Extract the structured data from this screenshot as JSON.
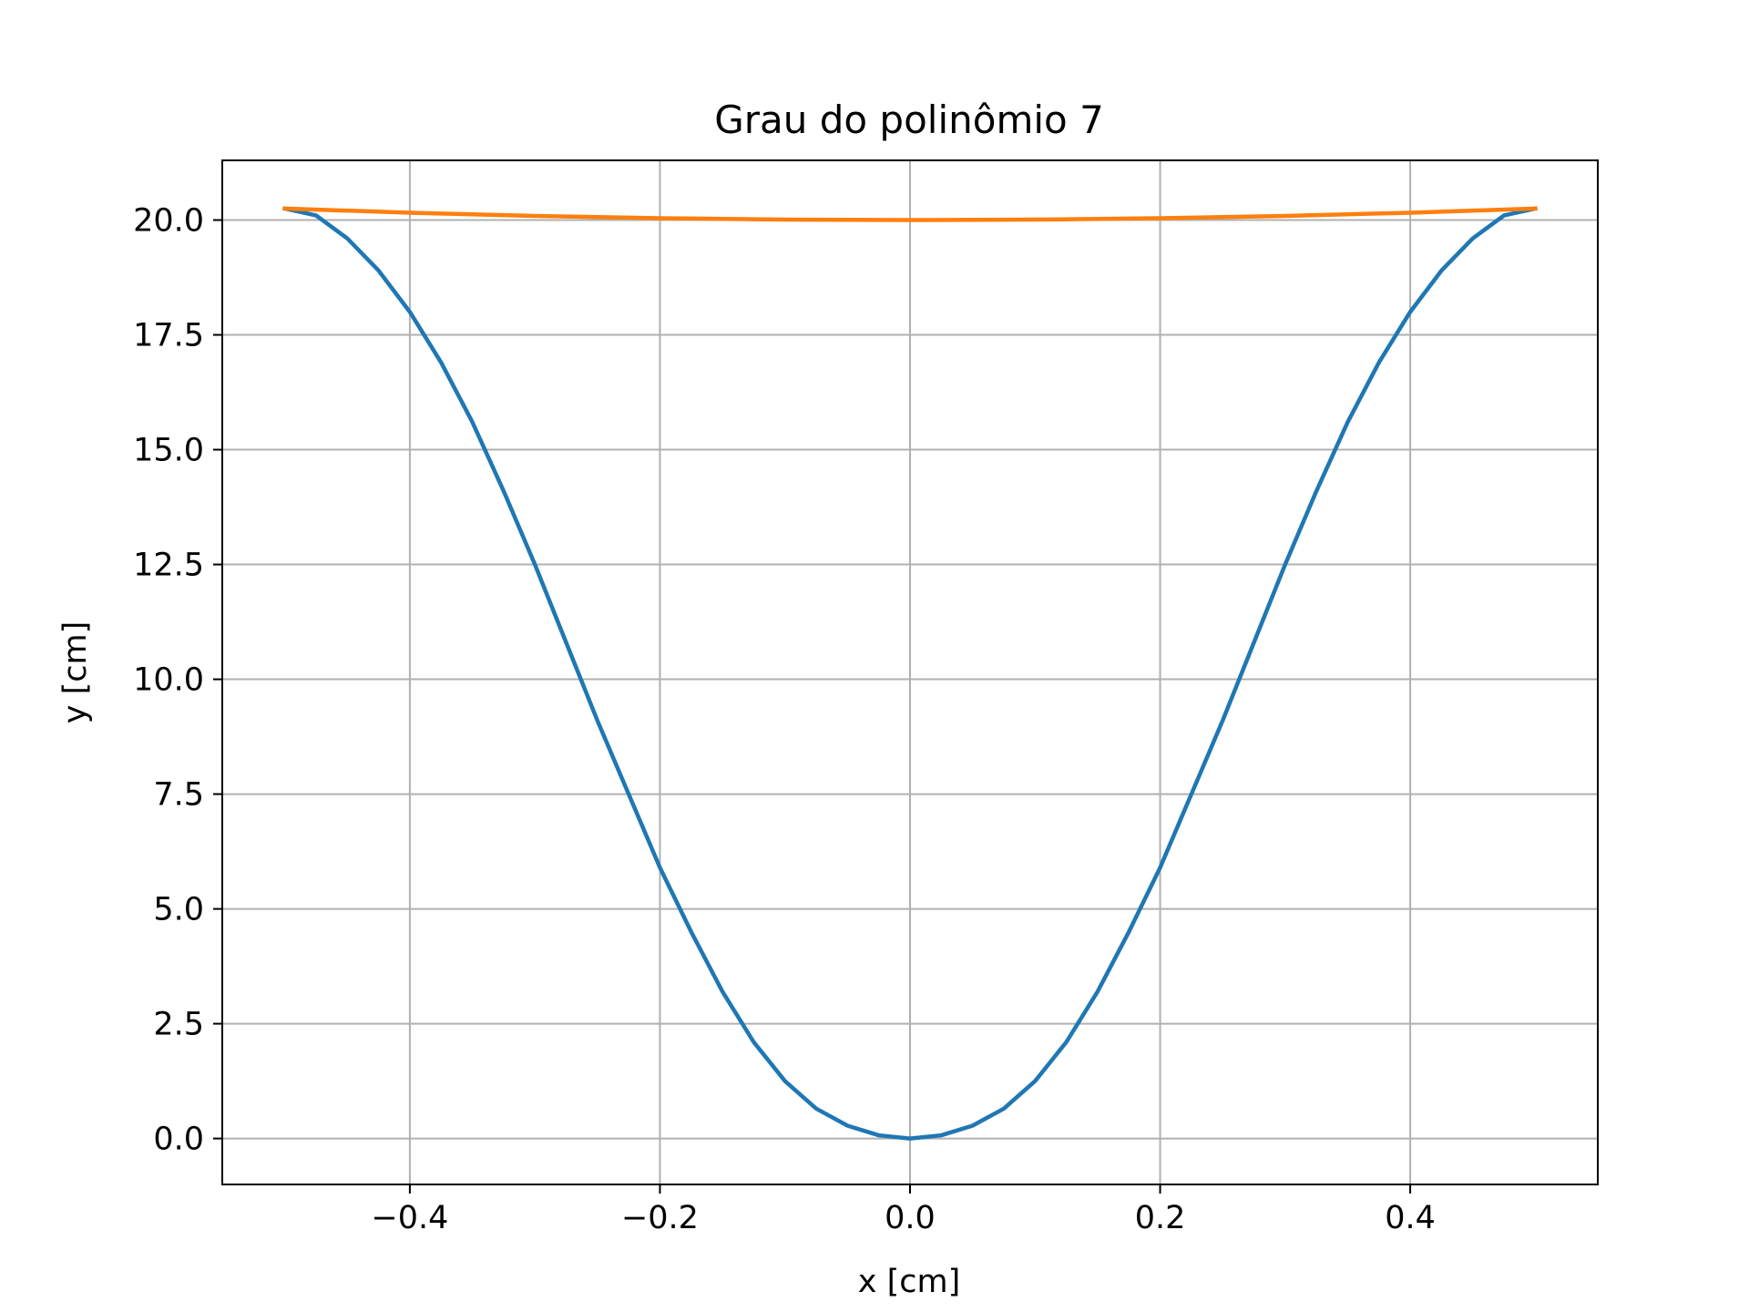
{
  "chart_data": {
    "type": "line",
    "title": "Grau do polinômio 7",
    "xlabel": "x [cm]",
    "ylabel": "y [cm]",
    "xlim": [
      -0.55,
      0.55
    ],
    "ylim": [
      -1.0,
      21.3
    ],
    "xticks": [
      -0.4,
      -0.2,
      0.0,
      0.2,
      0.4
    ],
    "xtick_labels": [
      "−0.4",
      "−0.2",
      "0.0",
      "0.2",
      "0.4"
    ],
    "yticks": [
      0.0,
      2.5,
      5.0,
      7.5,
      10.0,
      12.5,
      15.0,
      17.5,
      20.0
    ],
    "ytick_labels": [
      "0.0",
      "2.5",
      "5.0",
      "7.5",
      "10.0",
      "12.5",
      "15.0",
      "17.5",
      "20.0"
    ],
    "grid": true,
    "series": [
      {
        "color": "#1f77b4",
        "x": [
          -0.5,
          -0.475,
          -0.45,
          -0.425,
          -0.4,
          -0.375,
          -0.35,
          -0.325,
          -0.3,
          -0.275,
          -0.25,
          -0.225,
          -0.2,
          -0.175,
          -0.15,
          -0.125,
          -0.1,
          -0.075,
          -0.05,
          -0.025,
          0.0,
          0.025,
          0.05,
          0.075,
          0.1,
          0.125,
          0.15,
          0.175,
          0.2,
          0.225,
          0.25,
          0.275,
          0.3,
          0.325,
          0.35,
          0.375,
          0.4,
          0.425,
          0.45,
          0.475,
          0.5
        ],
        "y": [
          20.25,
          20.1,
          19.6,
          18.9,
          18.0,
          16.9,
          15.6,
          14.1,
          12.5,
          10.8,
          9.1,
          7.5,
          5.9,
          4.5,
          3.2,
          2.1,
          1.25,
          0.65,
          0.28,
          0.07,
          0.0,
          0.07,
          0.28,
          0.65,
          1.25,
          2.1,
          3.2,
          4.5,
          5.9,
          7.5,
          9.1,
          10.8,
          12.5,
          14.1,
          15.6,
          16.9,
          18.0,
          18.9,
          19.6,
          20.1,
          20.25
        ]
      },
      {
        "color": "#ff7f0e",
        "x": [
          -0.5,
          -0.4,
          -0.3,
          -0.2,
          -0.1,
          0.0,
          0.1,
          0.2,
          0.3,
          0.4,
          0.5
        ],
        "y": [
          20.25,
          20.16,
          20.09,
          20.04,
          20.01,
          20.0,
          20.01,
          20.04,
          20.09,
          20.16,
          20.25
        ]
      }
    ]
  }
}
